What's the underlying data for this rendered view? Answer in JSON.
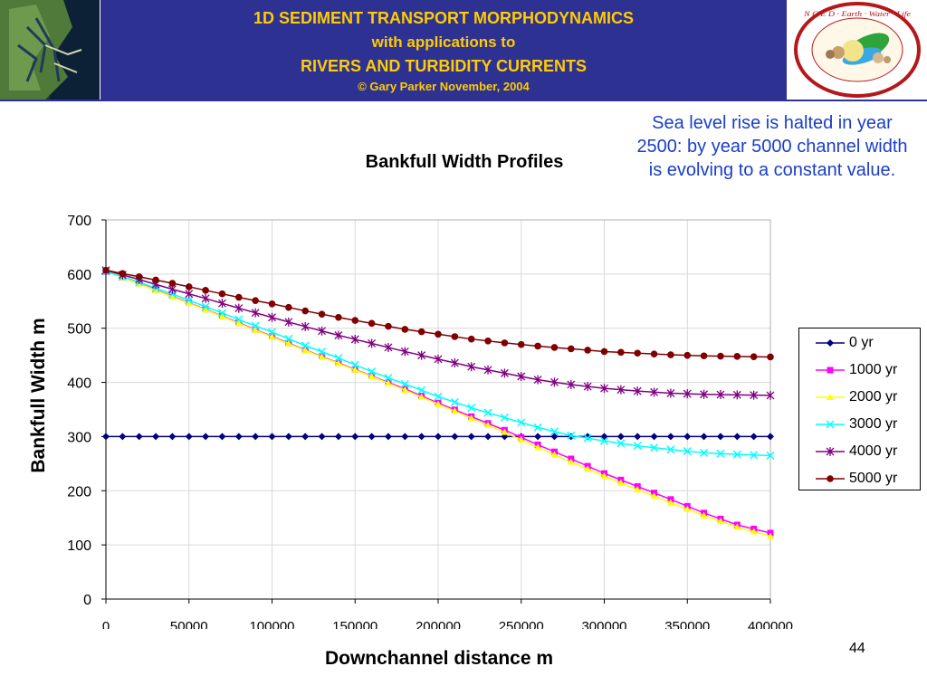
{
  "header": {
    "line1": "1D SEDIMENT TRANSPORT MORPHODYNAMICS",
    "line2": "with applications to",
    "line3": "RIVERS AND TURBIDITY CURRENTS",
    "line4": "© Gary Parker November, 2004",
    "logo_text": "N C E D · Earth · Water · Life",
    "colors": {
      "banner": "#2d3192",
      "banner_text": "#ffcc00"
    }
  },
  "note": "Sea level rise is halted in year 2500: by year 5000 channel width is evolving to a constant value.",
  "page_number": "44",
  "chart_data": {
    "type": "line",
    "title": "Bankfull Width Profiles",
    "xlabel": "Downchannel distance m",
    "ylabel": "Bankfull Width m",
    "xlim": [
      0,
      400000
    ],
    "ylim": [
      0,
      700
    ],
    "x_ticks": [
      "0",
      "50000",
      "100000",
      "150000",
      "200000",
      "250000",
      "300000",
      "350000",
      "400000"
    ],
    "y_ticks": [
      "0",
      "100",
      "200",
      "300",
      "400",
      "500",
      "600",
      "700"
    ],
    "grid": true,
    "legend_position": "right",
    "x": [
      0,
      20000,
      40000,
      60000,
      80000,
      100000,
      120000,
      140000,
      160000,
      180000,
      200000,
      220000,
      240000,
      260000,
      280000,
      300000,
      320000,
      340000,
      360000,
      380000,
      400000
    ],
    "series": [
      {
        "name": "0 yr",
        "color": "#000080",
        "marker": "diamond",
        "values": [
          300,
          300,
          300,
          300,
          300,
          300,
          300,
          300,
          300,
          300,
          300,
          300,
          300,
          300,
          300,
          300,
          300,
          300,
          300,
          300,
          300
        ]
      },
      {
        "name": "1000 yr",
        "color": "#ff00ff",
        "marker": "square",
        "values": [
          605,
          583,
          559,
          535,
          510,
          485,
          460,
          436,
          412,
          388,
          362,
          337,
          312,
          285,
          259,
          232,
          208,
          184,
          159,
          137,
          122
        ]
      },
      {
        "name": "2000 yr",
        "color": "#ffff00",
        "marker": "triangle",
        "values": [
          605,
          582,
          558,
          534,
          509,
          484,
          459,
          435,
          411,
          386,
          360,
          334,
          308,
          280,
          253,
          227,
          202,
          178,
          154,
          133,
          116
        ]
      },
      {
        "name": "3000 yr",
        "color": "#00ffff",
        "marker": "x",
        "values": [
          605,
          585,
          563,
          540,
          516,
          493,
          468,
          445,
          420,
          397,
          374,
          353,
          335,
          317,
          302,
          292,
          283,
          276,
          270,
          267,
          265
        ]
      },
      {
        "name": "4000 yr",
        "color": "#800080",
        "marker": "star",
        "values": [
          607,
          590,
          572,
          555,
          537,
          520,
          503,
          487,
          472,
          457,
          443,
          429,
          417,
          405,
          396,
          389,
          384,
          380,
          378,
          377,
          376
        ]
      },
      {
        "name": "5000 yr",
        "color": "#800000",
        "marker": "circle",
        "values": [
          607,
          595,
          583,
          570,
          557,
          545,
          532,
          520,
          509,
          498,
          489,
          480,
          473,
          467,
          462,
          457,
          454,
          451,
          449,
          448,
          447
        ]
      }
    ]
  }
}
